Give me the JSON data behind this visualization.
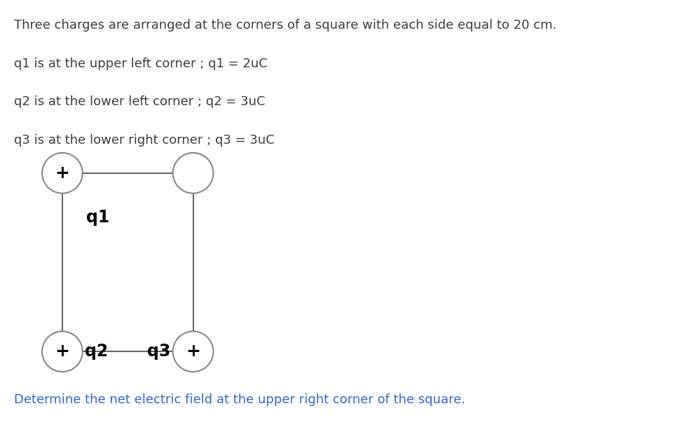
{
  "title_text": "Three charges are arranged at the corners of a square with each side equal to 20 cm.",
  "line1": "q1 is at the upper left corner ; q1 = 2uC",
  "line2": "q2 is at the lower left corner ; q2 = 3uC",
  "line3": "q3 is at the lower right corner ; q3 = 3uC",
  "footer_text": "Determine the net electric field at the upper right corner of the square.",
  "text_color": "#3d3d3d",
  "blue_color": "#3366cc",
  "circle_color": "#888888",
  "line_color": "#666666",
  "q1_label": "q1",
  "q2_label": "q2",
  "q3_label": "q3",
  "plus_symbol": "+",
  "font_size_main": 13,
  "bg_color": "#ffffff"
}
